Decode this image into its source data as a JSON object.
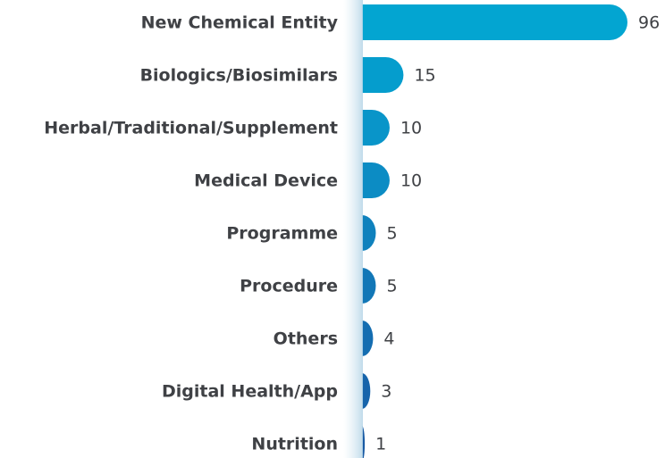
{
  "chart_data": {
    "type": "bar",
    "orientation": "horizontal",
    "categories": [
      "New Chemical Entity",
      "Biologics/Biosimilars",
      "Herbal/Traditional/Supplement",
      "Medical Device",
      "Programme",
      "Procedure",
      "Others",
      "Digital Health/App",
      "Nutrition"
    ],
    "values": [
      96,
      15,
      10,
      10,
      5,
      5,
      4,
      3,
      1
    ],
    "colors": [
      "#03a5d1",
      "#059dcd",
      "#0995c9",
      "#0c8cc4",
      "#0f81bd",
      "#1277b7",
      "#146db1",
      "#1664ab",
      "#185aa4"
    ]
  }
}
